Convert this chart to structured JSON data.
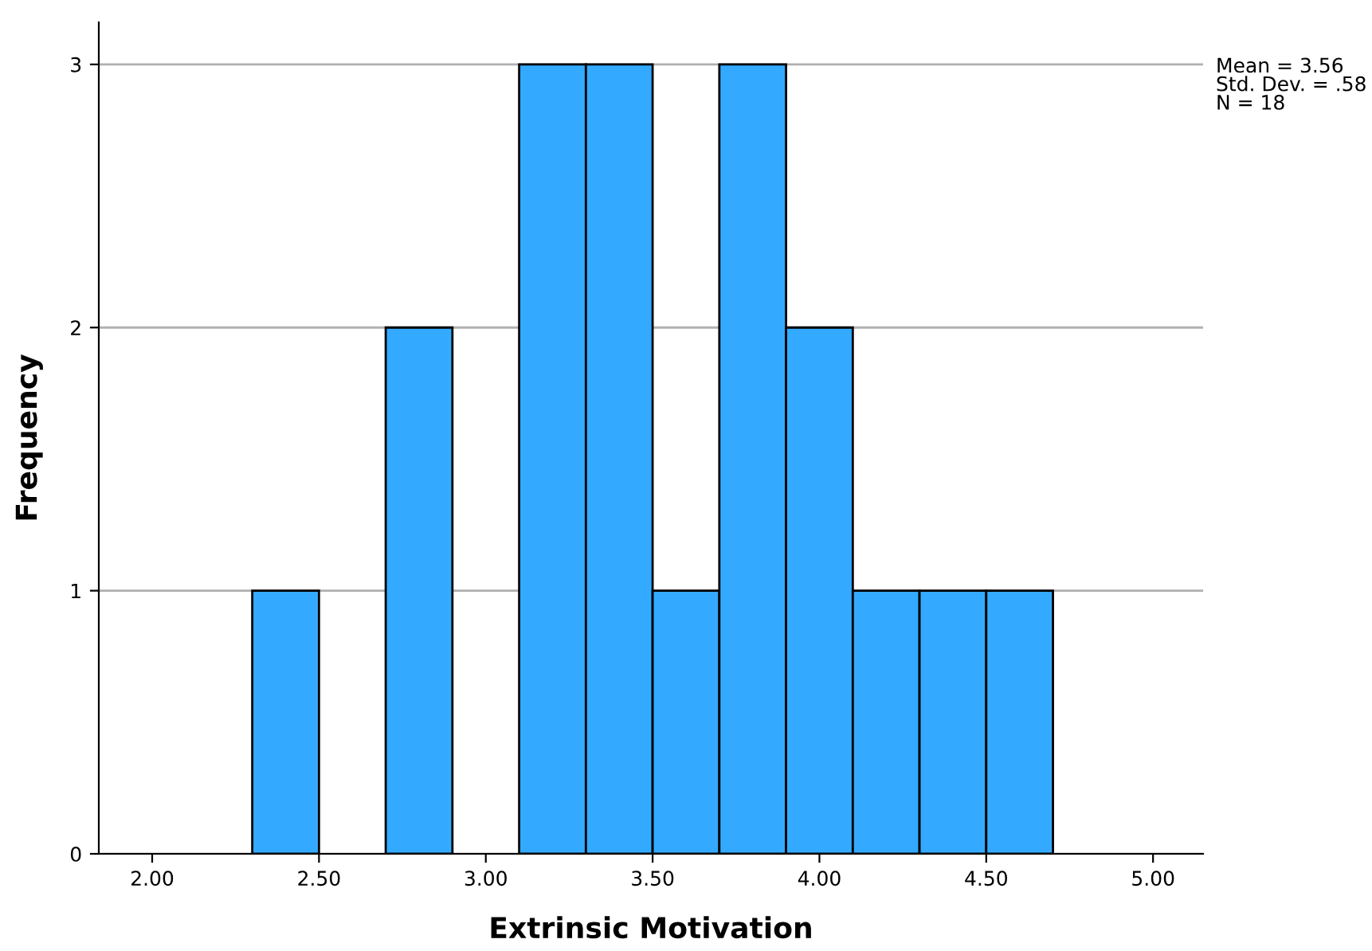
{
  "chart_data": {
    "type": "histogram",
    "xlabel": "Extrinsic Motivation",
    "ylabel": "Frequency",
    "bins": [
      2.3,
      2.5,
      2.7,
      2.9,
      3.1,
      3.3,
      3.5,
      3.7,
      3.9,
      4.1,
      4.3,
      4.5,
      4.7
    ],
    "values": [
      1,
      0,
      2,
      0,
      3,
      3,
      1,
      3,
      2,
      1,
      1,
      1
    ],
    "color": "#33aaff",
    "xlim": [
      1.84,
      5.15
    ],
    "xticks": [
      {
        "value": 2,
        "label": "2.00"
      },
      {
        "value": 2.5,
        "label": "2.50"
      },
      {
        "value": 3,
        "label": "3.00"
      },
      {
        "value": 3.5,
        "label": "3.50"
      },
      {
        "value": 4,
        "label": "4.00"
      },
      {
        "value": 4.5,
        "label": "4.50"
      },
      {
        "value": 5,
        "label": "5.00"
      }
    ],
    "ylim": [
      0,
      3.16
    ],
    "yticks": [
      0,
      1,
      2,
      3
    ],
    "grid": "y",
    "annotations": [
      "Mean = 3.56\nStd. Dev. = .58\nN = 18"
    ]
  }
}
